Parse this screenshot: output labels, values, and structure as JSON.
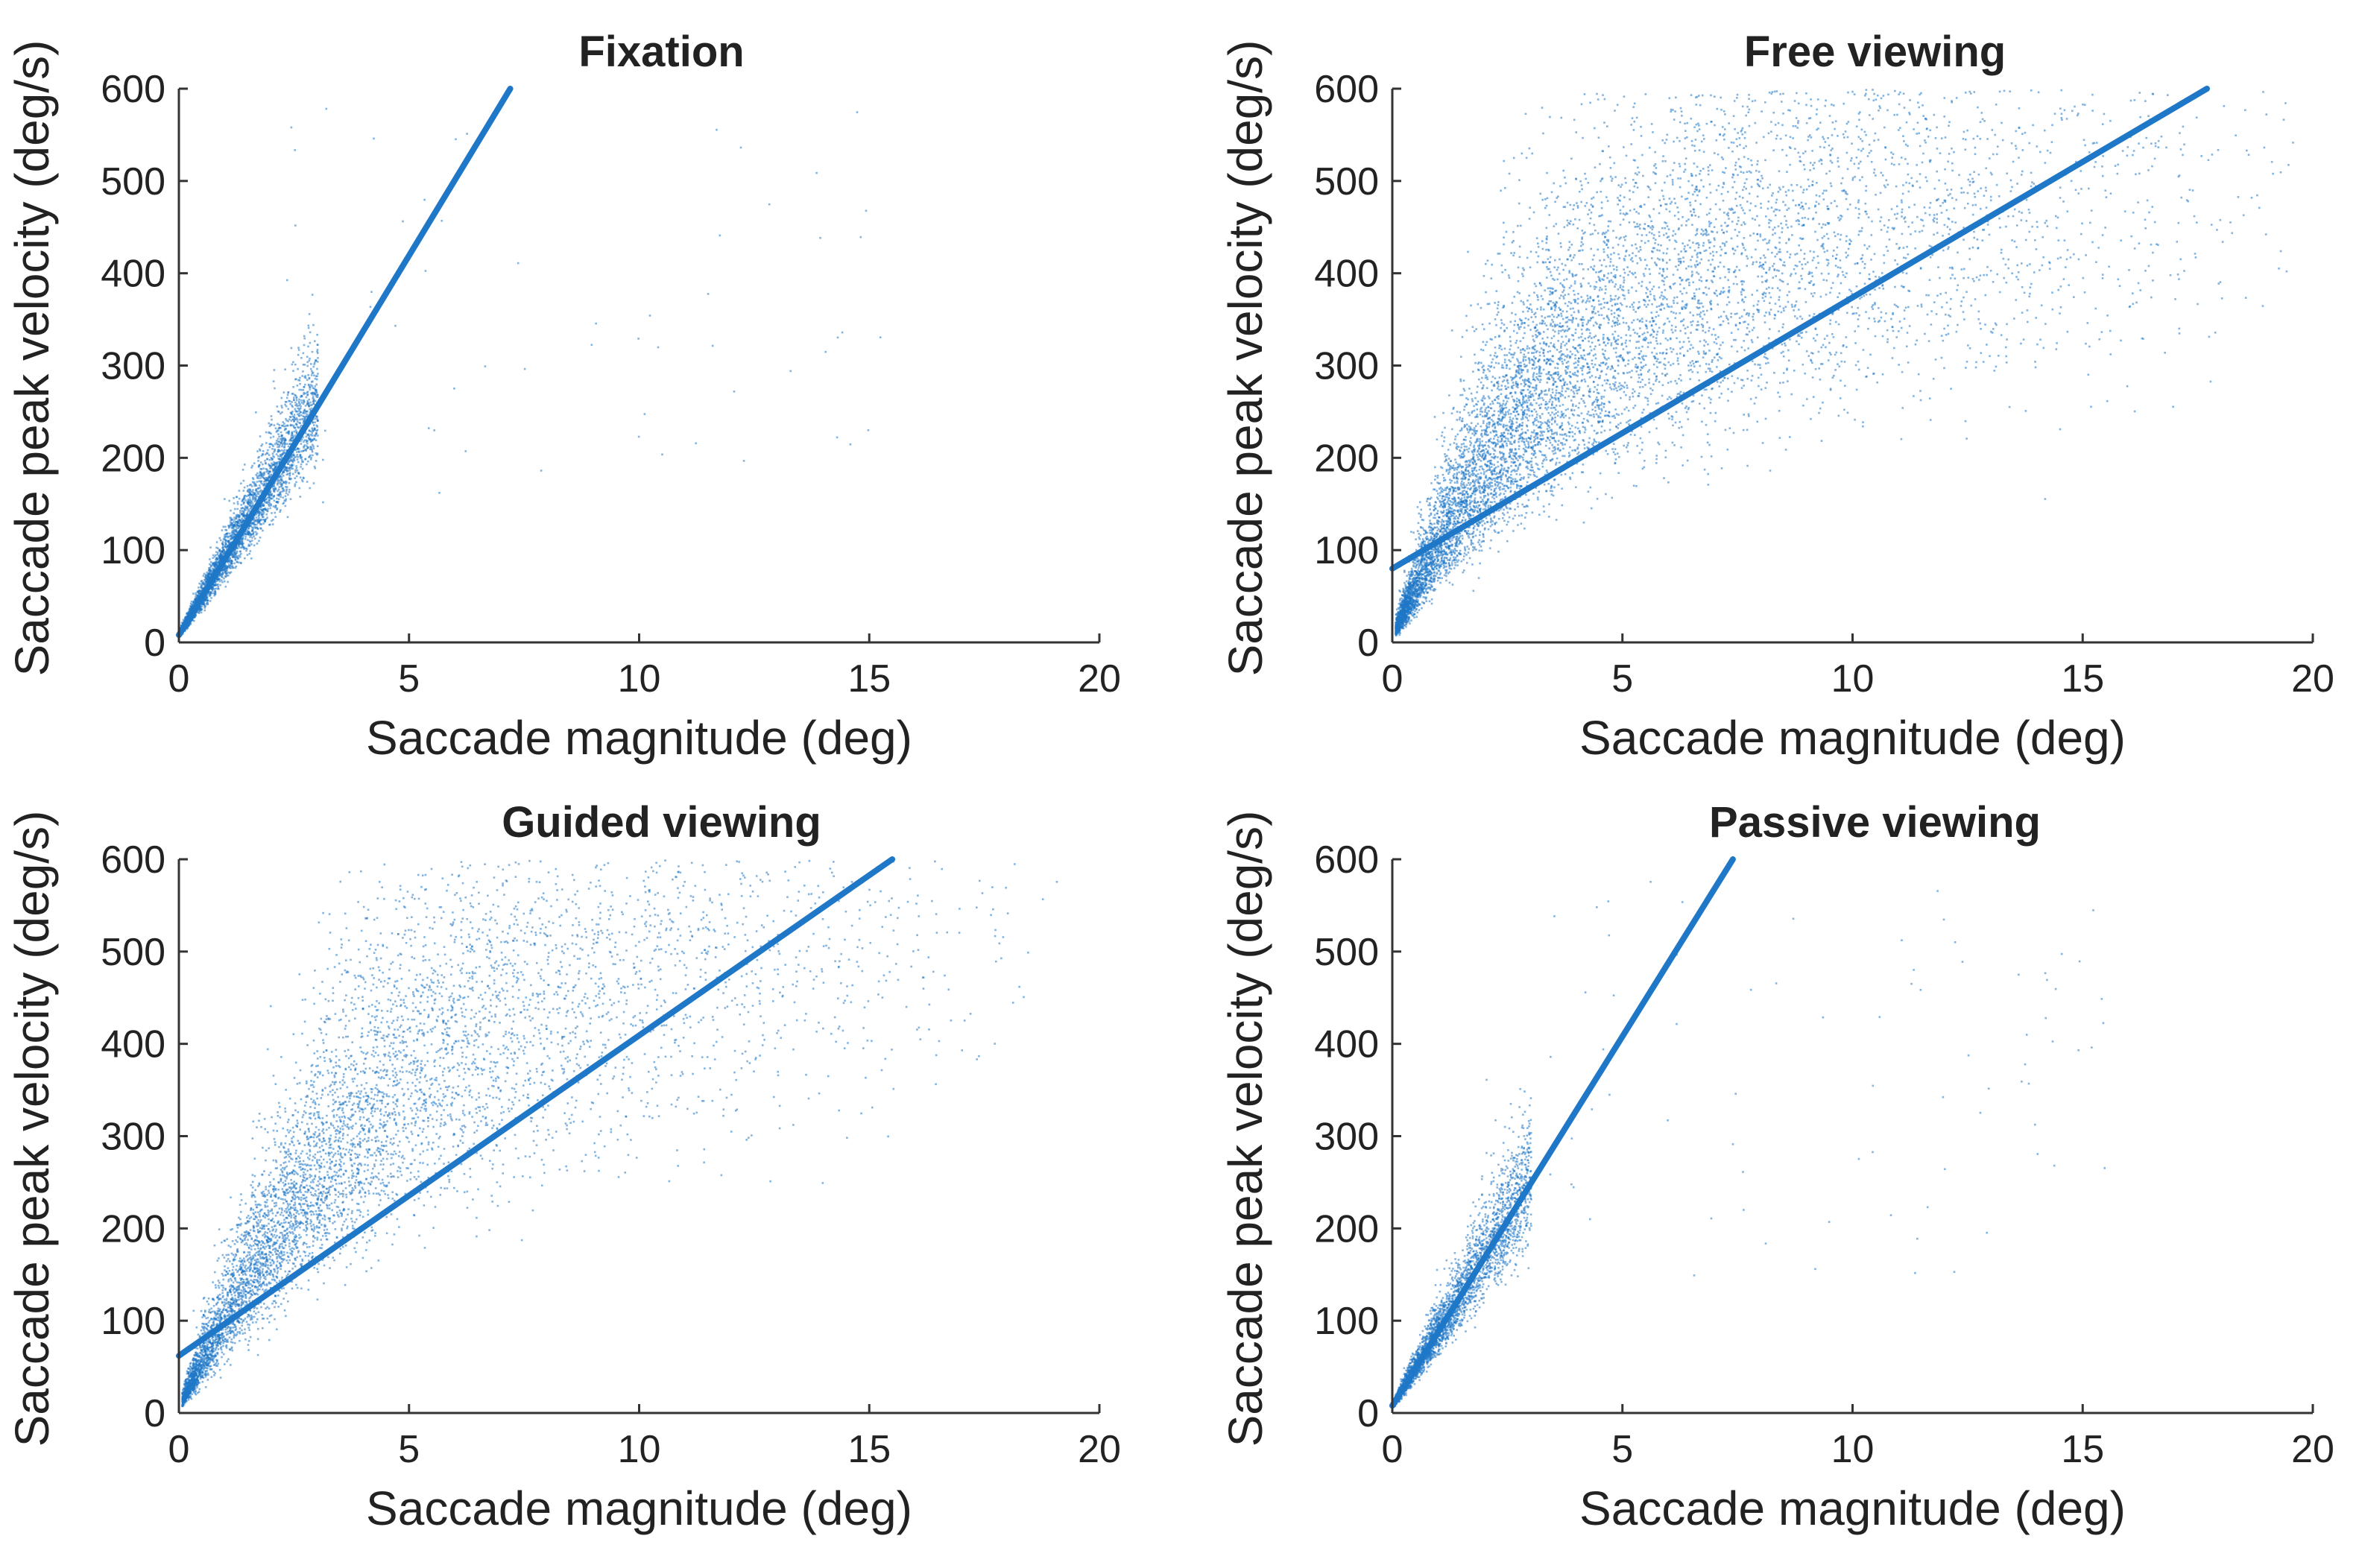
{
  "figure": {
    "description_free": true
  },
  "colors": {
    "accent": "#1f77c7",
    "axis": "#333333"
  },
  "chart_data": [
    {
      "type": "scatter",
      "title": "Fixation",
      "xlabel": "Saccade magnitude (deg)",
      "ylabel": "Saccade peak velocity (deg/s)",
      "xlim": [
        0,
        20
      ],
      "ylim": [
        0,
        600
      ],
      "xticks": [
        0,
        5,
        10,
        15,
        20
      ],
      "yticks": [
        0,
        100,
        200,
        300,
        400,
        500,
        600
      ],
      "point_cloud": {
        "points": 4000,
        "x_max": 3.0,
        "slope": 85,
        "intercept": 10,
        "spread": 0.14,
        "seed": 11,
        "outliers": 60
      },
      "fit_line": {
        "x": [
          0,
          7.2
        ],
        "y": [
          8,
          600
        ]
      }
    },
    {
      "type": "scatter",
      "title": "Free viewing",
      "xlabel": "Saccade magnitude (deg)",
      "ylabel": "Saccade peak velocity (deg/s)",
      "xlim": [
        0,
        20
      ],
      "ylim": [
        0,
        600
      ],
      "xticks": [
        0,
        5,
        10,
        15,
        20
      ],
      "yticks": [
        0,
        100,
        200,
        300,
        400,
        500,
        600
      ],
      "point_cloud": {
        "points": 9000,
        "x_max": 20,
        "vmax": 520,
        "c": 4.5,
        "spread": 0.28,
        "seed": 23,
        "outliers": 0
      },
      "fit_line": {
        "x": [
          0,
          17.7
        ],
        "y": [
          80,
          600
        ]
      }
    },
    {
      "type": "scatter",
      "title": "Guided viewing",
      "xlabel": "Saccade magnitude (deg)",
      "ylabel": "Saccade peak velocity (deg/s)",
      "xlim": [
        0,
        20
      ],
      "ylim": [
        0,
        600
      ],
      "xticks": [
        0,
        5,
        10,
        15,
        20
      ],
      "yticks": [
        0,
        100,
        200,
        300,
        400,
        500,
        600
      ],
      "point_cloud": {
        "points": 7000,
        "x_max": 20,
        "vmax": 600,
        "c": 5.5,
        "spread": 0.26,
        "seed": 37,
        "outliers": 0
      },
      "fit_line": {
        "x": [
          0,
          15.5
        ],
        "y": [
          62,
          600
        ]
      }
    },
    {
      "type": "scatter",
      "title": "Passive viewing",
      "xlabel": "Saccade magnitude (deg)",
      "ylabel": "Saccade peak velocity (deg/s)",
      "xlim": [
        0,
        20
      ],
      "ylim": [
        0,
        600
      ],
      "xticks": [
        0,
        5,
        10,
        15,
        20
      ],
      "yticks": [
        0,
        100,
        200,
        300,
        400,
        500,
        600
      ],
      "point_cloud": {
        "points": 3500,
        "x_max": 3.0,
        "slope": 82,
        "intercept": 10,
        "spread": 0.15,
        "seed": 51,
        "outliers": 80
      },
      "fit_line": {
        "x": [
          0,
          7.4
        ],
        "y": [
          8,
          600
        ]
      }
    }
  ]
}
